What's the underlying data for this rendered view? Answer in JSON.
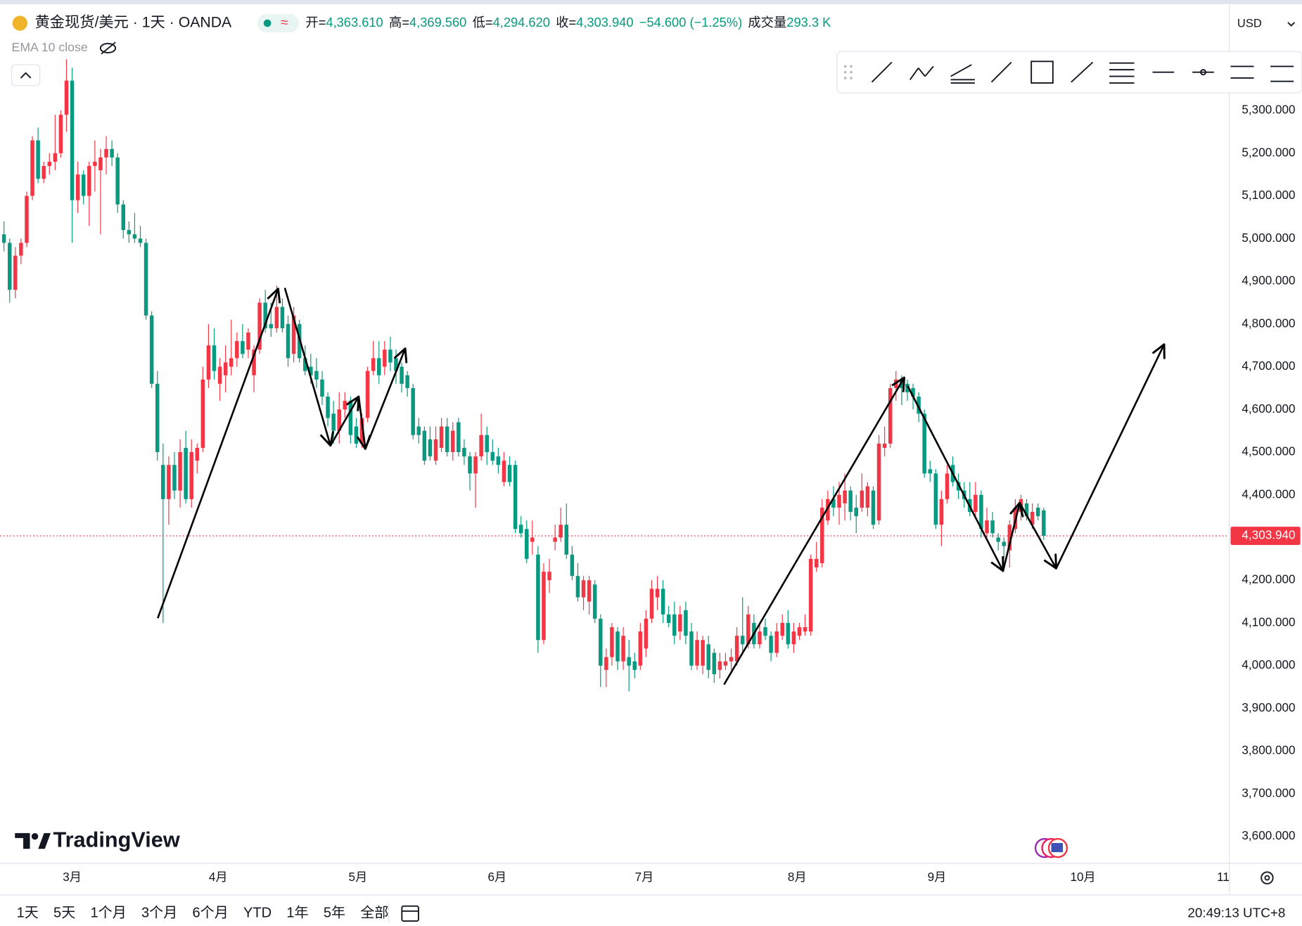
{
  "chart_data": {
    "type": "candlestick",
    "title": "黄金现货/美元 · 1天 · OANDA",
    "indicator": "EMA 10 close",
    "currency": "USD",
    "quote": [
      {
        "label": "开=",
        "value": "4,363.610"
      },
      {
        "label": "高=",
        "value": "4,369.560"
      },
      {
        "label": "低=",
        "value": "4,294.620"
      },
      {
        "label": "收=",
        "value": "4,303.940"
      }
    ],
    "change": "−54.600 (−1.25%)",
    "volume_label": "成交量",
    "volume": "293.3 K",
    "up_color": "#f23645",
    "down_color": "#089981",
    "open": [
      5010,
      4990,
      4880,
      4960,
      4990,
      5100,
      5230,
      5140,
      5170,
      5180,
      5200,
      5290,
      5370,
      5090,
      5150,
      5100,
      5170,
      5160,
      5190,
      5210,
      5190,
      5080,
      5020,
      5010,
      5000,
      4990,
      4820,
      4660,
      4470,
      4390,
      4470,
      4410,
      4510,
      4390,
      4480,
      4510,
      4670,
      4750,
      4660,
      4680,
      4700,
      4720,
      4760,
      4740,
      4680,
      4740,
      4850,
      4800,
      4790,
      4840,
      4800,
      4730,
      4800,
      4720,
      4700,
      4690,
      4670,
      4630,
      4590,
      4550,
      4600,
      4620,
      4560,
      4520,
      4580,
      4690,
      4720,
      4700,
      4740,
      4720,
      4700,
      4680,
      4650,
      4560,
      4550,
      4530,
      4480,
      4510,
      4560,
      4500,
      4570,
      4510,
      4490,
      4450,
      4490,
      4540,
      4500,
      4490,
      4430,
      4470,
      4470,
      4330,
      4320,
      4290,
      4260,
      4060,
      4200,
      4290,
      4300,
      4330,
      4260,
      4210,
      4160,
      4150,
      4190,
      4110,
      3990,
      4020,
      4080,
      4010,
      4020,
      4010,
      4000,
      4040,
      4110,
      4160,
      4180,
      4120,
      4120,
      4080,
      4130,
      4080,
      4000,
      4000,
      4050,
      4030,
      3990,
      4000,
      4010,
      4010,
      4070,
      4050,
      4100,
      4050,
      4090,
      4070,
      4030,
      4070,
      4100,
      4050,
      4070,
      4080,
      4080,
      4230,
      4240,
      4340,
      4390,
      4370,
      4380,
      4410,
      4370,
      4370,
      4370,
      4410,
      4340,
      4510,
      4520,
      4650,
      4670,
      4660,
      4650,
      4630,
      4590,
      4460,
      4450,
      4330,
      4390,
      4470,
      4430,
      4410,
      4390,
      4360,
      4400,
      4310,
      4340,
      4300,
      4290,
      4270,
      4320,
      4360,
      4380,
      4330,
      4370,
      4363.61
    ],
    "high": [
      5040,
      5000,
      4980,
      5000,
      5110,
      5240,
      5260,
      5180,
      5200,
      5290,
      5300,
      5420,
      5400,
      5180,
      5160,
      5180,
      5230,
      5210,
      5240,
      5230,
      5200,
      5090,
      5040,
      5060,
      5030,
      5000,
      4830,
      4690,
      4520,
      4490,
      4500,
      4530,
      4550,
      4530,
      4520,
      4700,
      4800,
      4790,
      4720,
      4750,
      4810,
      4780,
      4800,
      4790,
      4750,
      4860,
      4880,
      4850,
      4890,
      4860,
      4820,
      4840,
      4810,
      4750,
      4730,
      4720,
      4690,
      4640,
      4620,
      4640,
      4640,
      4630,
      4580,
      4590,
      4700,
      4760,
      4760,
      4760,
      4770,
      4740,
      4710,
      4690,
      4660,
      4580,
      4560,
      4560,
      4560,
      4580,
      4580,
      4570,
      4580,
      4530,
      4500,
      4500,
      4590,
      4560,
      4530,
      4510,
      4500,
      4490,
      4480,
      4350,
      4340,
      4340,
      4280,
      4240,
      4250,
      4330,
      4370,
      4380,
      4280,
      4240,
      4210,
      4210,
      4200,
      4120,
      4040,
      4100,
      4090,
      4090,
      4060,
      4030,
      4100,
      4130,
      4200,
      4210,
      4200,
      4140,
      4150,
      4140,
      4150,
      4100,
      4080,
      4070,
      4070,
      4040,
      4030,
      4030,
      4040,
      4090,
      4160,
      4140,
      4120,
      4100,
      4110,
      4080,
      4100,
      4120,
      4130,
      4100,
      4100,
      4120,
      4260,
      4290,
      4390,
      4410,
      4420,
      4430,
      4450,
      4420,
      4400,
      4450,
      4430,
      4420,
      4540,
      4560,
      4660,
      4690,
      4680,
      4670,
      4660,
      4640,
      4600,
      4480,
      4460,
      4410,
      4470,
      4490,
      4450,
      4430,
      4430,
      4430,
      4410,
      4370,
      4360,
      4310,
      4300,
      4340,
      4390,
      4400,
      4390,
      4380,
      4380,
      4369.56
    ],
    "low": [
      4970,
      4850,
      4860,
      4940,
      4980,
      5090,
      5130,
      5130,
      5150,
      5160,
      5190,
      5250,
      4990,
      5060,
      5080,
      5030,
      5110,
      5010,
      5150,
      5170,
      5060,
      5000,
      4990,
      4990,
      4980,
      4810,
      4650,
      4480,
      4100,
      4330,
      4390,
      4370,
      4380,
      4370,
      4450,
      4500,
      4650,
      4670,
      4620,
      4640,
      4680,
      4700,
      4720,
      4720,
      4640,
      4730,
      4780,
      4770,
      4780,
      4780,
      4700,
      4710,
      4710,
      4680,
      4660,
      4650,
      4610,
      4560,
      4520,
      4520,
      4580,
      4520,
      4510,
      4510,
      4570,
      4680,
      4660,
      4680,
      4690,
      4660,
      4640,
      4630,
      4530,
      4520,
      4470,
      4480,
      4470,
      4500,
      4490,
      4480,
      4490,
      4470,
      4410,
      4370,
      4480,
      4470,
      4470,
      4450,
      4420,
      4420,
      4310,
      4300,
      4240,
      4260,
      4030,
      4050,
      4170,
      4270,
      4290,
      4250,
      4200,
      4150,
      4130,
      4120,
      4100,
      3950,
      3950,
      4000,
      3990,
      3990,
      3940,
      3970,
      3990,
      4020,
      4100,
      4130,
      4100,
      4090,
      4050,
      4060,
      4050,
      3990,
      3990,
      3980,
      3970,
      3960,
      3970,
      3990,
      3990,
      4000,
      4030,
      4040,
      4040,
      4040,
      4060,
      4010,
      4020,
      4060,
      4040,
      4030,
      4060,
      4070,
      4070,
      4220,
      4230,
      4330,
      4350,
      4330,
      4340,
      4340,
      4310,
      4360,
      4350,
      4320,
      4330,
      4490,
      4510,
      4620,
      4610,
      4620,
      4600,
      4570,
      4440,
      4430,
      4320,
      4280,
      4380,
      4420,
      4390,
      4370,
      4350,
      4350,
      4300,
      4300,
      4300,
      4270,
      4250,
      4230,
      4310,
      4340,
      4340,
      4320,
      4340,
      4294.62
    ],
    "close": [
      4990,
      4880,
      4960,
      4990,
      5100,
      5230,
      5140,
      5170,
      5180,
      5200,
      5290,
      5370,
      5090,
      5150,
      5100,
      5170,
      5180,
      5190,
      5210,
      5190,
      5080,
      5020,
      5010,
      5000,
      4990,
      4820,
      4660,
      4500,
      4390,
      4470,
      4410,
      4500,
      4390,
      4500,
      4510,
      4670,
      4750,
      4690,
      4700,
      4710,
      4720,
      4760,
      4730,
      4780,
      4740,
      4850,
      4790,
      4790,
      4840,
      4790,
      4720,
      4820,
      4720,
      4690,
      4680,
      4670,
      4630,
      4580,
      4550,
      4600,
      4620,
      4540,
      4520,
      4580,
      4690,
      4720,
      4680,
      4740,
      4710,
      4690,
      4660,
      4650,
      4540,
      4540,
      4480,
      4490,
      4530,
      4560,
      4500,
      4550,
      4500,
      4490,
      4450,
      4490,
      4540,
      4500,
      4480,
      4470,
      4480,
      4430,
      4320,
      4310,
      4250,
      4300,
      4060,
      4220,
      4220,
      4300,
      4330,
      4260,
      4210,
      4160,
      4200,
      4200,
      4110,
      4000,
      4020,
      4090,
      4010,
      4070,
      4000,
      3990,
      4080,
      4110,
      4180,
      4180,
      4120,
      4100,
      4070,
      4120,
      4070,
      4000,
      4060,
      4060,
      3990,
      3980,
      4010,
      4010,
      4020,
      4070,
      4050,
      4120,
      4050,
      4080,
      4070,
      4030,
      4080,
      4100,
      4050,
      4080,
      4090,
      4090,
      4250,
      4250,
      4370,
      4390,
      4370,
      4400,
      4410,
      4360,
      4350,
      4410,
      4420,
      4330,
      4520,
      4520,
      4650,
      4670,
      4650,
      4640,
      4630,
      4590,
      4450,
      4450,
      4330,
      4390,
      4450,
      4430,
      4410,
      4390,
      4360,
      4400,
      4320,
      4340,
      4310,
      4290,
      4280,
      4330,
      4370,
      4390,
      4350,
      4360,
      4350,
      4303.94
    ],
    "xlim": [
      -0.7,
      215.6
    ],
    "xticks": [
      {
        "value": 12.0,
        "label": "3月"
      },
      {
        "value": 37.7,
        "label": "4月"
      },
      {
        "value": 62.3,
        "label": "5月"
      },
      {
        "value": 86.8,
        "label": "6月"
      },
      {
        "value": 112.7,
        "label": "7月"
      },
      {
        "value": 139.6,
        "label": "8月"
      },
      {
        "value": 164.2,
        "label": "9月"
      },
      {
        "value": 189.9,
        "label": "10月"
      },
      {
        "value": 214.6,
        "label": "11"
      }
    ],
    "ylim": [
      3538,
      5549
    ],
    "yticks": [
      {
        "value": 5300,
        "label": "5,300.000"
      },
      {
        "value": 5200,
        "label": "5,200.000"
      },
      {
        "value": 5100,
        "label": "5,100.000"
      },
      {
        "value": 5000,
        "label": "5,000.000"
      },
      {
        "value": 4900,
        "label": "4,900.000"
      },
      {
        "value": 4800,
        "label": "4,800.000"
      },
      {
        "value": 4700,
        "label": "4,700.000"
      },
      {
        "value": 4600,
        "label": "4,600.000"
      },
      {
        "value": 4500,
        "label": "4,500.000"
      },
      {
        "value": 4400,
        "label": "4,400.000"
      },
      {
        "value": 4200,
        "label": "4,200.000"
      },
      {
        "value": 4100,
        "label": "4,100.000"
      },
      {
        "value": 4000,
        "label": "4,000.000"
      },
      {
        "value": 3900,
        "label": "3,900.000"
      },
      {
        "value": 3800,
        "label": "3,800.000"
      },
      {
        "value": 3700,
        "label": "3,700.000"
      },
      {
        "value": 3600,
        "label": "3,600.000"
      }
    ],
    "price_line": {
      "value": 4303.94,
      "label": "4,303.940"
    },
    "grid": false
  },
  "ui": {
    "logo": "TradingView",
    "timeframes": [
      "1天",
      "5天",
      "1个月",
      "3个月",
      "6个月",
      "YTD",
      "1年",
      "5年",
      "全部"
    ],
    "clock": "20:49:13 UTC+8"
  }
}
